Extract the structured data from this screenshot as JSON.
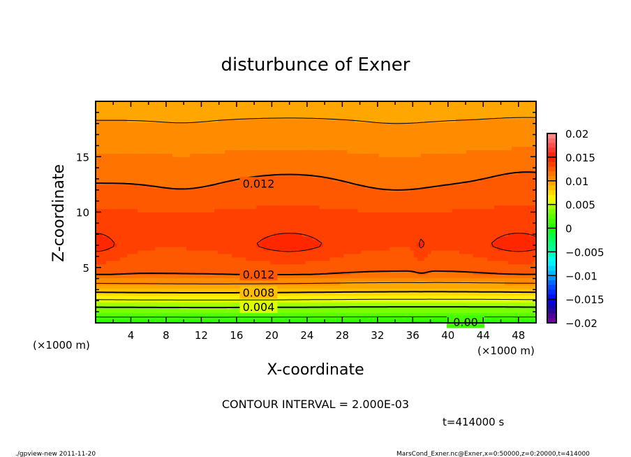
{
  "chart_data": {
    "type": "heatmap",
    "subtype": "filled-contour",
    "title": "disturbunce of Exner",
    "xlabel": "X-coordinate",
    "ylabel": "Z-coordinate",
    "x_unit_left": "(×1000 m)",
    "x_unit_right": "(×1000 m)",
    "xlim": [
      0,
      50
    ],
    "ylim": [
      0,
      20
    ],
    "x_ticks": [
      4,
      8,
      12,
      16,
      20,
      24,
      28,
      32,
      36,
      40,
      44,
      48
    ],
    "y_ticks": [
      5,
      10,
      15
    ],
    "contour_interval": 0.002,
    "contour_interval_label": "CONTOUR INTERVAL = 2.000E-03",
    "time_label": "t=414000 s",
    "contour_labels": [
      {
        "text": "0.012",
        "x": 18.5,
        "z": 12.6
      },
      {
        "text": "0.012",
        "x": 18.5,
        "z": 4.4
      },
      {
        "text": "0.008",
        "x": 18.5,
        "z": 2.75
      },
      {
        "text": "0.004",
        "x": 18.5,
        "z": 1.45
      },
      {
        "text": "0.00",
        "x": 42,
        "z": 0.1
      }
    ],
    "vertical_profile": [
      [
        0,
        0.0
      ],
      [
        0.3,
        0.0015
      ],
      [
        1.44,
        0.004
      ],
      [
        2.75,
        0.008
      ],
      [
        4.4,
        0.012
      ],
      [
        7,
        0.0138
      ],
      [
        10,
        0.0131
      ],
      [
        12.6,
        0.012
      ],
      [
        16,
        0.0108
      ],
      [
        18.3,
        0.01
      ],
      [
        20,
        0.0093
      ]
    ],
    "max_regions": [
      {
        "x": [
          0,
          4
        ],
        "z": [
          5.5,
          8.2
        ],
        "value": 0.0145
      },
      {
        "x": [
          14,
          30
        ],
        "z": [
          5.5,
          8.2
        ],
        "value": 0.0145
      },
      {
        "x": [
          40,
          50
        ],
        "z": [
          5.5,
          8.7
        ],
        "value": 0.0145
      }
    ],
    "colorbar": {
      "min": -0.02,
      "max": 0.02,
      "step": 0.001,
      "tick_labels": [
        "0.02",
        "0.015",
        "0.01",
        "0.005",
        "0",
        "-0.005",
        "-0.01",
        "-0.015",
        "-0.02"
      ],
      "anchors": [
        [
          -0.02,
          "#800099"
        ],
        [
          -0.017,
          "#1a0a99"
        ],
        [
          -0.015,
          "#0000ff"
        ],
        [
          -0.012,
          "#0055ff"
        ],
        [
          -0.01,
          "#00aaff"
        ],
        [
          -0.007,
          "#00ffff"
        ],
        [
          -0.005,
          "#00ffaa"
        ],
        [
          -0.002,
          "#00ff55"
        ],
        [
          0,
          "#1aff00"
        ],
        [
          0.003,
          "#66ff00"
        ],
        [
          0.005,
          "#bbff00"
        ],
        [
          0.006,
          "#ffff00"
        ],
        [
          0.008,
          "#ffcc00"
        ],
        [
          0.01,
          "#ff9900"
        ],
        [
          0.012,
          "#ff6600"
        ],
        [
          0.014,
          "#ff3300"
        ],
        [
          0.015,
          "#ff1a00"
        ],
        [
          0.017,
          "#ff4040"
        ],
        [
          0.02,
          "#ff9999"
        ]
      ]
    }
  },
  "footer": {
    "left": "./gpview-new  2011-11-20",
    "right": "MarsCond_Exner.nc@Exner,x=0:50000,z=0:20000,t=414000"
  }
}
